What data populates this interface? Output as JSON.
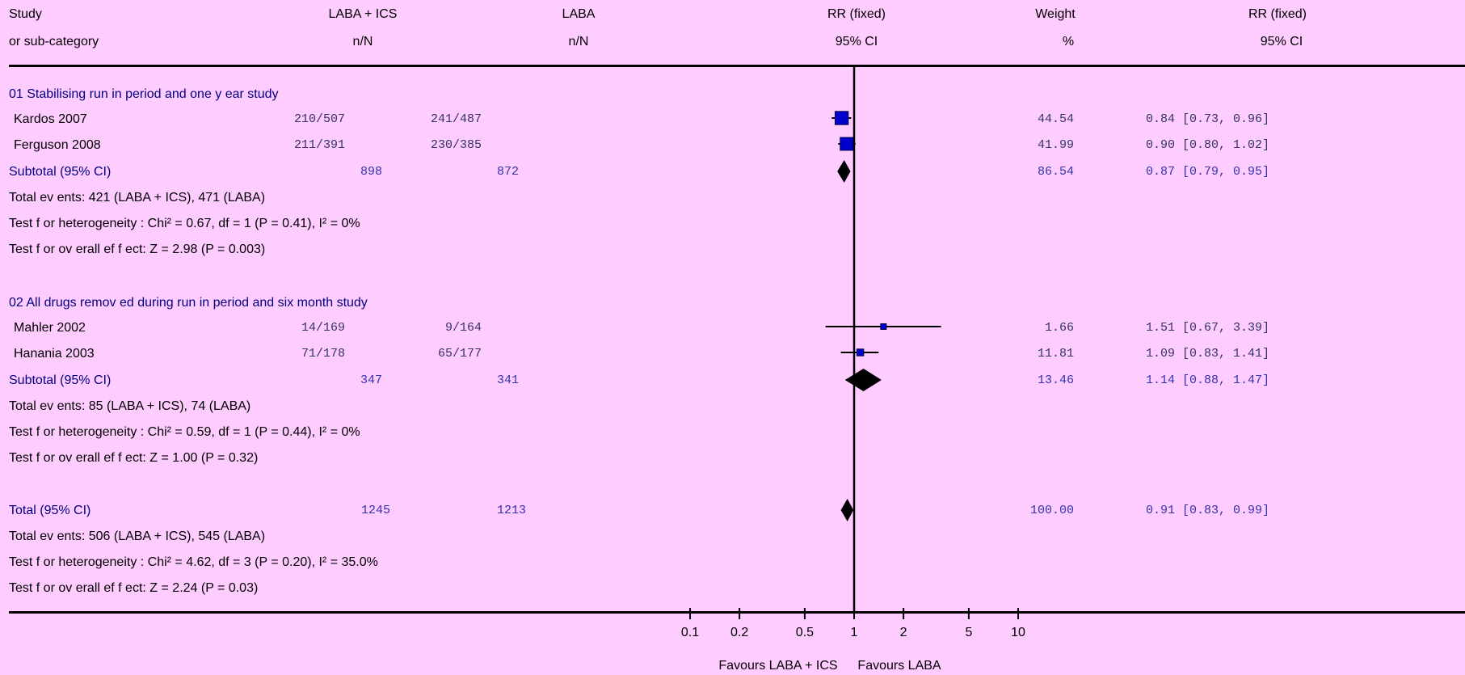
{
  "header": {
    "study_l1": "Study",
    "study_l2": "or sub-category",
    "t_l1": "LABA + ICS",
    "t_l2": "n/N",
    "c_l1": "LABA",
    "c_l2": "n/N",
    "rr_l1": "RR (fixed)",
    "rr_l2": "95% CI",
    "w_l1": "Weight",
    "w_l2": "%",
    "rrtxt_l1": "RR (fixed)",
    "rrtxt_l2": "95% CI"
  },
  "groups": [
    {
      "title": "01 Stabilising run in period and one y ear study",
      "studies": [
        {
          "name": "Kardos 2007",
          "t": "210/507",
          "c": "241/487",
          "weight": "44.54",
          "ci_text": "0.84 [0.73, 0.96]"
        },
        {
          "name": "Ferguson 2008",
          "t": "211/391",
          "c": "230/385",
          "weight": "41.99",
          "ci_text": "0.90 [0.80, 1.02]"
        }
      ],
      "subtotal": {
        "label": "Subtotal (95% CI)",
        "t": "898",
        "c": "872",
        "weight": "86.54",
        "ci_text": "0.87 [0.79, 0.95]"
      },
      "notes": [
        "Total ev ents: 421 (LABA + ICS), 471 (LABA)",
        "Test f or heterogeneity : Chi² = 0.67, df = 1 (P = 0.41), I² = 0%",
        "Test f or ov erall ef f ect: Z = 2.98 (P = 0.003)"
      ]
    },
    {
      "title": "02 All drugs remov ed during run in period and six month study",
      "studies": [
        {
          "name": "Mahler 2002",
          "t": "14/169",
          "c": "9/164",
          "weight": "1.66",
          "ci_text": "1.51 [0.67, 3.39]"
        },
        {
          "name": "Hanania 2003",
          "t": "71/178",
          "c": "65/177",
          "weight": "11.81",
          "ci_text": "1.09 [0.83, 1.41]"
        }
      ],
      "subtotal": {
        "label": "Subtotal (95% CI)",
        "t": "347",
        "c": "341",
        "weight": "13.46",
        "ci_text": "1.14 [0.88, 1.47]"
      },
      "notes": [
        "Total ev ents: 85 (LABA + ICS), 74 (LABA)",
        "Test f or heterogeneity : Chi² = 0.59, df = 1 (P = 0.44), I² = 0%",
        "Test f or ov erall ef f ect: Z = 1.00 (P = 0.32)"
      ]
    }
  ],
  "total": {
    "label": "Total (95% CI)",
    "t": "1245",
    "c": "1213",
    "weight": "100.00",
    "ci_text": "0.91 [0.83, 0.99]",
    "notes": [
      "Total ev ents: 506 (LABA + ICS), 545 (LABA)",
      "Test f or heterogeneity : Chi² = 4.62, df = 3 (P = 0.20), I² = 35.0%",
      "Test f or ov erall ef f ect: Z = 2.24 (P = 0.03)"
    ]
  },
  "axis": {
    "favours_left": "Favours LABA + ICS",
    "favours_right": "Favours LABA"
  },
  "colors": {
    "background": "#FFCCFF",
    "heading_text": "#000080",
    "square": "#0000CC",
    "diamond": "#000000"
  },
  "chart_data": {
    "type": "forest",
    "scale": "log",
    "x_ticks": [
      0.1,
      0.2,
      0.5,
      1,
      2,
      5,
      10
    ],
    "x_tick_labels": [
      "0.1",
      "0.2",
      "0.5",
      "1",
      "2",
      "5",
      "10"
    ],
    "reference_line": 1,
    "studies": [
      {
        "name": "Kardos 2007",
        "rr": 0.84,
        "lo": 0.73,
        "hi": 0.96,
        "weight": 44.54
      },
      {
        "name": "Ferguson 2008",
        "rr": 0.9,
        "lo": 0.8,
        "hi": 1.02,
        "weight": 41.99
      },
      {
        "name": "Mahler 2002",
        "rr": 1.51,
        "lo": 0.67,
        "hi": 3.39,
        "weight": 1.66
      },
      {
        "name": "Hanania 2003",
        "rr": 1.09,
        "lo": 0.83,
        "hi": 1.41,
        "weight": 11.81
      }
    ],
    "pooled": [
      {
        "name": "Subtotal 01",
        "rr": 0.87,
        "lo": 0.79,
        "hi": 0.95
      },
      {
        "name": "Subtotal 02",
        "rr": 1.14,
        "lo": 0.88,
        "hi": 1.47
      },
      {
        "name": "Total",
        "rr": 0.91,
        "lo": 0.83,
        "hi": 0.99
      }
    ]
  }
}
